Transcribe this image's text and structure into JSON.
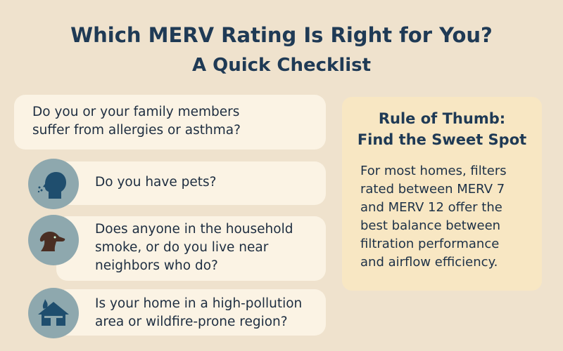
{
  "title": "Which MERV Rating Is Right for You?",
  "subtitle": "A Quick Checklist",
  "questions": [
    {
      "text": "Do you or your family members suffer from allergies or asthma?"
    },
    {
      "text": "Do you have pets?",
      "icon": "person-breathing-icon"
    },
    {
      "text": "Does anyone in the household smoke, or do you live near neighbors who do?",
      "icon": "dog-icon"
    },
    {
      "text": "Is your home in a high-pollution area or wildfire-prone region?",
      "icon": "house-fire-icon"
    }
  ],
  "rule": {
    "heading_line1": "Rule of Thumb:",
    "heading_line2": "Find the Sweet Spot",
    "body": "For most homes, filters rated between MERV 7 and MERV 12 offer the best balance between filtration performance and airflow efficiency."
  },
  "colors": {
    "background": "#efe2cd",
    "card": "#fbf3e4",
    "title": "#1f3a55",
    "icon_circle": "#8ea8ae",
    "icon_dark": "#1f4e6e",
    "dog": "#4a2e23",
    "rule_box": "#f8e7c3"
  }
}
